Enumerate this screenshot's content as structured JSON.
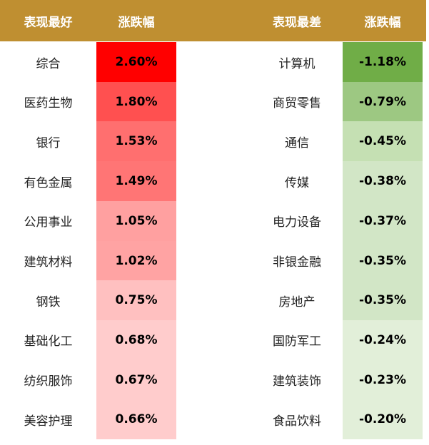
{
  "header": [
    "表现最好",
    "涨跌幅",
    "表现最差",
    "涨跌幅"
  ],
  "rows": [
    [
      "综合",
      "2.60%",
      "计算机",
      "-1.18%"
    ],
    [
      "医药生物",
      "1.80%",
      "商贸零售",
      "-0.79%"
    ],
    [
      "银行",
      "1.53%",
      "通信",
      "-0.45%"
    ],
    [
      "有色金属",
      "1.49%",
      "传媒",
      "-0.38%"
    ],
    [
      "公用事业",
      "1.05%",
      "电力设备",
      "-0.37%"
    ],
    [
      "建筑材料",
      "1.02%",
      "非银金融",
      "-0.35%"
    ],
    [
      "钢铁",
      "0.75%",
      "房地产",
      "-0.35%"
    ],
    [
      "基础化工",
      "0.68%",
      "国防军工",
      "-0.24%"
    ],
    [
      "纺织服饰",
      "0.67%",
      "建筑装饰",
      "-0.23%"
    ],
    [
      "美容护理",
      "0.66%",
      "食品饮料",
      "-0.20%"
    ]
  ]
}
